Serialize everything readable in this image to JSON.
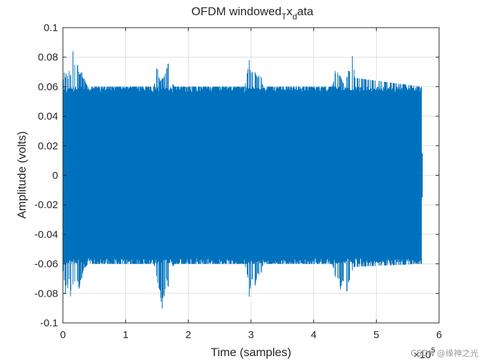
{
  "chart_data": {
    "type": "line",
    "title": "OFDM windowed",
    "title_sub_1": "T",
    "title_mid": "x",
    "title_sub_2": "d",
    "title_end": "ata",
    "xlabel": "Time (samples)",
    "ylabel": "Amplitude (volts)",
    "xlim": [
      0,
      6
    ],
    "ylim": [
      -0.1,
      0.1
    ],
    "x_exponent_base": "×10",
    "x_exponent_power": "5",
    "x_ticks": [
      0,
      1,
      2,
      3,
      4,
      5,
      6
    ],
    "x_tick_labels": [
      "0",
      "1",
      "2",
      "3",
      "4",
      "5",
      "6"
    ],
    "y_ticks": [
      0.1,
      0.08,
      0.06,
      0.04,
      0.02,
      0,
      -0.02,
      -0.04,
      -0.06,
      -0.08,
      -0.1
    ],
    "y_tick_labels": [
      "0.1",
      "0.08",
      "0.06",
      "0.04",
      "0.02",
      "0",
      "-0.02",
      "-0.04",
      "-0.06",
      "-0.08",
      "-0.1"
    ],
    "grid": true,
    "series": [
      {
        "color": "#0072BD",
        "x_range": [
          0,
          5.72
        ],
        "envelope": {
          "x": [
            0,
            0.02,
            0.04,
            0.06,
            0.08,
            0.1,
            0.12,
            0.14,
            0.16,
            0.18,
            0.2,
            0.22,
            0.24,
            0.26,
            0.28,
            0.3,
            0.32,
            0.34,
            0.36,
            0.38,
            0.4,
            1.45,
            1.48,
            1.5,
            1.52,
            1.55,
            1.58,
            1.6,
            1.62,
            1.65,
            1.68,
            1.7,
            1.72,
            1.75,
            1.78,
            1.8,
            2.9,
            2.92,
            2.95,
            2.97,
            3.0,
            3.02,
            3.05,
            3.08,
            3.1,
            3.12,
            3.15,
            3.18,
            3.2,
            4.3,
            4.33,
            4.35,
            4.38,
            4.4,
            4.43,
            4.45,
            4.48,
            4.5,
            4.53,
            4.55,
            4.58,
            4.6,
            4.63,
            4.65,
            5.72
          ],
          "upper": [
            0.063,
            0.07,
            0.066,
            0.072,
            0.064,
            0.071,
            0.068,
            0.067,
            0.084,
            0.07,
            0.083,
            0.073,
            0.075,
            0.068,
            0.069,
            0.07,
            0.065,
            0.066,
            0.063,
            0.061,
            0.06,
            0.06,
            0.066,
            0.075,
            0.069,
            0.063,
            0.066,
            0.065,
            0.067,
            0.071,
            0.076,
            0.073,
            0.067,
            0.062,
            0.06,
            0.06,
            0.06,
            0.064,
            0.072,
            0.079,
            0.067,
            0.07,
            0.072,
            0.068,
            0.066,
            0.067,
            0.069,
            0.062,
            0.06,
            0.06,
            0.066,
            0.072,
            0.07,
            0.068,
            0.067,
            0.064,
            0.062,
            0.069,
            0.066,
            0.071,
            0.07,
            0.078,
            0.083,
            0.066,
            0.06
          ],
          "lower": [
            -0.063,
            -0.07,
            -0.081,
            -0.068,
            -0.078,
            -0.07,
            -0.083,
            -0.069,
            -0.074,
            -0.07,
            -0.075,
            -0.068,
            -0.073,
            -0.077,
            -0.071,
            -0.07,
            -0.065,
            -0.063,
            -0.062,
            -0.061,
            -0.06,
            -0.06,
            -0.064,
            -0.07,
            -0.075,
            -0.078,
            -0.092,
            -0.079,
            -0.083,
            -0.069,
            -0.076,
            -0.07,
            -0.066,
            -0.062,
            -0.06,
            -0.06,
            -0.06,
            -0.064,
            -0.069,
            -0.083,
            -0.073,
            -0.07,
            -0.078,
            -0.072,
            -0.066,
            -0.067,
            -0.068,
            -0.062,
            -0.06,
            -0.06,
            -0.065,
            -0.07,
            -0.07,
            -0.068,
            -0.078,
            -0.071,
            -0.072,
            -0.075,
            -0.079,
            -0.073,
            -0.07,
            -0.066,
            -0.063,
            -0.062,
            -0.06
          ]
        }
      }
    ]
  },
  "watermark": "CSDN @缘神之光"
}
